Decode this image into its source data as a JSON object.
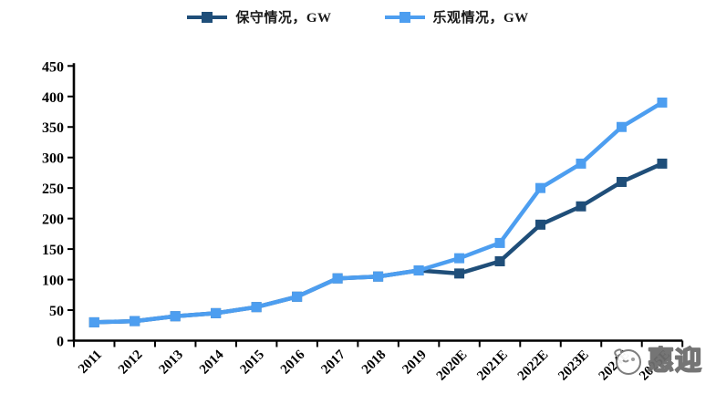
{
  "legend": {
    "items": [
      {
        "label": "保守情况，GW"
      },
      {
        "label": "乐观情况，GW"
      }
    ]
  },
  "watermark": {
    "text": "惠迎"
  },
  "chart_data": {
    "type": "line",
    "title": "",
    "xlabel": "",
    "ylabel": "",
    "categories": [
      "2011",
      "2012",
      "2013",
      "2014",
      "2015",
      "2016",
      "2017",
      "2018",
      "2019",
      "2020E",
      "2021E",
      "2022E",
      "2023E",
      "2024E",
      "2025E"
    ],
    "series": [
      {
        "id": "conservative",
        "name": "保守情况，GW",
        "color": "#1F4E79",
        "values": [
          30,
          32,
          40,
          45,
          55,
          72,
          102,
          105,
          115,
          110,
          130,
          190,
          220,
          260,
          290
        ]
      },
      {
        "id": "optimistic",
        "name": "乐观情况，GW",
        "color": "#4D9EF0",
        "values": [
          30,
          32,
          40,
          45,
          55,
          72,
          102,
          105,
          115,
          135,
          160,
          250,
          290,
          350,
          390
        ]
      }
    ],
    "ylim": [
      0,
      450
    ],
    "ytick_step": 50,
    "yticks": [
      0,
      50,
      100,
      150,
      200,
      250,
      300,
      350,
      400,
      450
    ],
    "grid": false,
    "legend_position": "top",
    "marker": "square",
    "x_label_rotation": -45
  }
}
